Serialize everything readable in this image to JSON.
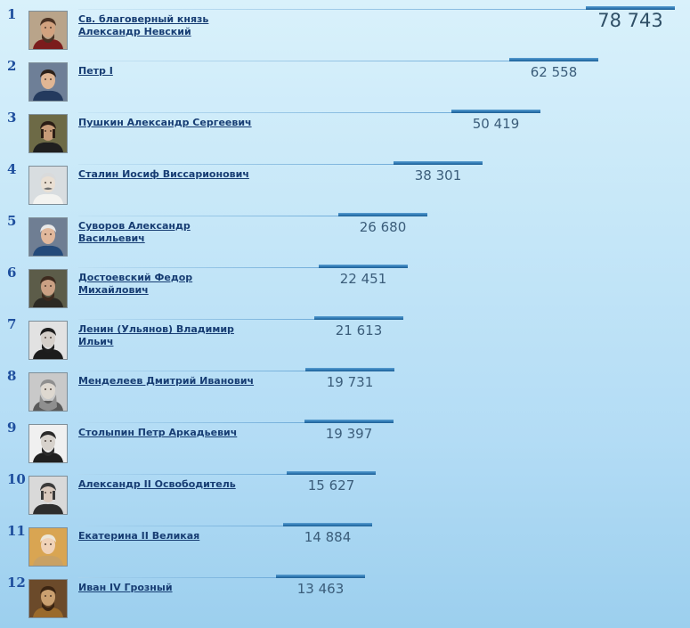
{
  "rankings": [
    {
      "rank": "1",
      "name": "Св. благоверный князь Александр Невский",
      "votes_text": "78 743",
      "votes": 78743,
      "portrait": "alexander-nevsky-portrait"
    },
    {
      "rank": "2",
      "name": "Петр I",
      "votes_text": "62 558",
      "votes": 62558,
      "portrait": "peter-i-portrait"
    },
    {
      "rank": "3",
      "name": "Пушкин Александр Сергеевич",
      "votes_text": "50 419",
      "votes": 50419,
      "portrait": "pushkin-portrait"
    },
    {
      "rank": "4",
      "name": "Сталин Иосиф Виссарионович",
      "votes_text": "38 301",
      "votes": 38301,
      "portrait": "stalin-portrait"
    },
    {
      "rank": "5",
      "name": "Суворов Александр Васильевич",
      "votes_text": "26 680",
      "votes": 26680,
      "portrait": "suvorov-portrait"
    },
    {
      "rank": "6",
      "name": "Достоевский Федор Михайлович",
      "votes_text": "22 451",
      "votes": 22451,
      "portrait": "dostoevsky-portrait"
    },
    {
      "rank": "7",
      "name": "Ленин (Ульянов) Владимир Ильич",
      "votes_text": "21 613",
      "votes": 21613,
      "portrait": "lenin-portrait"
    },
    {
      "rank": "8",
      "name": "Менделеев Дмитрий Иванович",
      "votes_text": "19 731",
      "votes": 19731,
      "portrait": "mendeleev-portrait"
    },
    {
      "rank": "9",
      "name": "Столыпин Петр Аркадьевич",
      "votes_text": "19 397",
      "votes": 19397,
      "portrait": "stolypin-portrait"
    },
    {
      "rank": "10",
      "name": "Александр II Освободитель",
      "votes_text": "15 627",
      "votes": 15627,
      "portrait": "alexander-ii-portrait"
    },
    {
      "rank": "11",
      "name": "Екатерина II Великая",
      "votes_text": "14 884",
      "votes": 14884,
      "portrait": "catherine-ii-portrait"
    },
    {
      "rank": "12",
      "name": "Иван IV Грозный",
      "votes_text": "13 463",
      "votes": 13463,
      "portrait": "ivan-iv-portrait"
    }
  ],
  "colors": {
    "rank": "#1f4f9e",
    "link": "#173d73",
    "bar": "#2f79b4",
    "value": "#3b5d7a"
  }
}
